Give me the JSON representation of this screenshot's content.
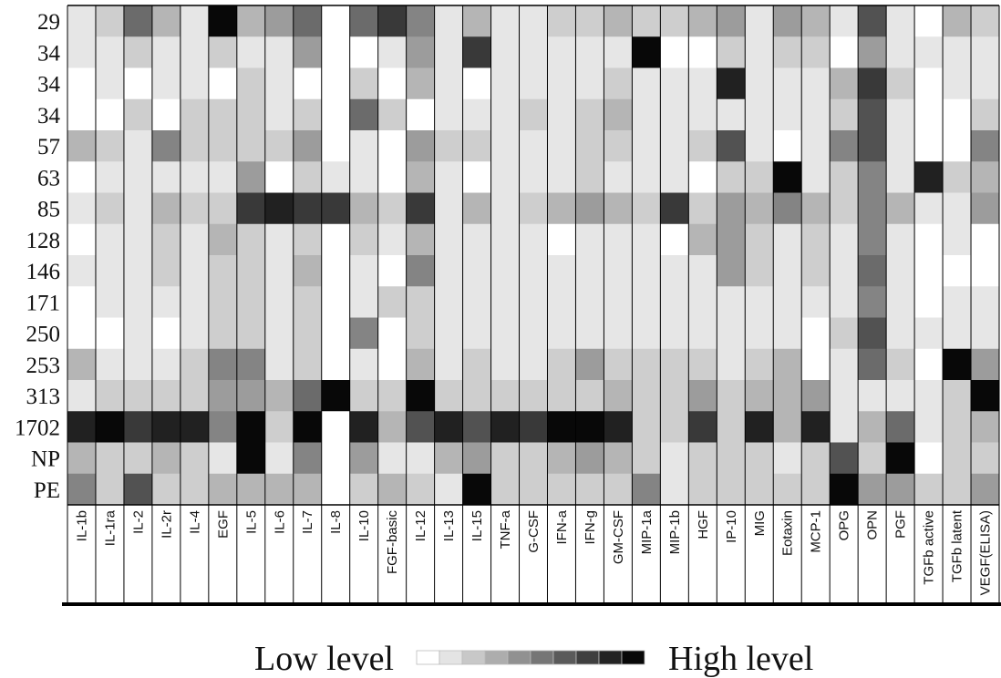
{
  "chart_data": {
    "type": "heatmap",
    "rows": [
      "29",
      "34",
      "34",
      "34",
      "57",
      "63",
      "85",
      "128",
      "146",
      "171",
      "250",
      "253",
      "313",
      "1702",
      "NP",
      "PE"
    ],
    "columns": [
      "IL-1b",
      "IL-1ra",
      "IL-2",
      "IL-2r",
      "IL-4",
      "EGF",
      "IL-5",
      "IL-6",
      "IL-7",
      "IL-8",
      "IL-10",
      "FGF-basic",
      "IL-12",
      "IL-13",
      "IL-15",
      "TNF-a",
      "G-CSF",
      "IFN-a",
      "IFN-g",
      "GM-CSF",
      "MIP-1a",
      "MIP-1b",
      "HGF",
      "IP-10",
      "MIG",
      "Eotaxin",
      "MCP-1",
      "OPG",
      "OPN",
      "PGF",
      "TGFb active",
      "TGFb latent",
      "VEGF(ELISA)"
    ],
    "scale": {
      "min": 0,
      "max": 10
    },
    "values": [
      [
        1,
        2,
        6,
        3,
        1,
        10,
        3,
        4,
        6,
        0,
        6,
        8,
        5,
        1,
        3,
        1,
        1,
        2,
        2,
        3,
        2,
        2,
        3,
        4,
        1,
        4,
        3,
        1,
        7,
        1,
        0,
        3,
        2
      ],
      [
        1,
        1,
        2,
        1,
        1,
        2,
        1,
        1,
        4,
        0,
        0,
        1,
        4,
        1,
        8,
        1,
        1,
        1,
        1,
        1,
        10,
        0,
        0,
        2,
        1,
        2,
        2,
        0,
        4,
        1,
        1,
        1,
        1
      ],
      [
        0,
        1,
        0,
        1,
        1,
        0,
        2,
        1,
        0,
        0,
        2,
        0,
        3,
        1,
        0,
        1,
        1,
        1,
        1,
        2,
        1,
        1,
        1,
        9,
        1,
        1,
        1,
        3,
        8,
        2,
        0,
        1,
        1
      ],
      [
        0,
        0,
        2,
        0,
        2,
        2,
        2,
        1,
        2,
        0,
        6,
        2,
        0,
        1,
        1,
        1,
        2,
        1,
        2,
        3,
        1,
        1,
        1,
        1,
        1,
        1,
        1,
        2,
        7,
        1,
        0,
        0,
        2
      ],
      [
        3,
        2,
        1,
        5,
        2,
        2,
        2,
        2,
        4,
        0,
        1,
        0,
        4,
        2,
        2,
        1,
        1,
        1,
        2,
        2,
        1,
        1,
        2,
        7,
        1,
        0,
        1,
        5,
        7,
        1,
        0,
        0,
        5
      ],
      [
        0,
        1,
        1,
        1,
        1,
        1,
        4,
        0,
        2,
        1,
        1,
        0,
        3,
        1,
        0,
        1,
        1,
        1,
        2,
        1,
        1,
        1,
        0,
        2,
        2,
        10,
        1,
        2,
        5,
        1,
        9,
        2,
        3
      ],
      [
        1,
        2,
        1,
        3,
        2,
        2,
        8,
        9,
        8,
        8,
        3,
        2,
        8,
        1,
        3,
        1,
        2,
        3,
        4,
        3,
        2,
        8,
        2,
        4,
        3,
        5,
        3,
        2,
        5,
        3,
        1,
        1,
        4
      ],
      [
        0,
        1,
        1,
        2,
        1,
        3,
        2,
        1,
        2,
        0,
        2,
        1,
        3,
        1,
        1,
        1,
        1,
        0,
        1,
        1,
        1,
        0,
        3,
        4,
        2,
        1,
        2,
        1,
        5,
        1,
        0,
        1,
        0
      ],
      [
        1,
        1,
        1,
        2,
        1,
        2,
        2,
        1,
        3,
        0,
        1,
        0,
        5,
        1,
        1,
        1,
        1,
        1,
        1,
        1,
        1,
        1,
        1,
        4,
        2,
        1,
        2,
        1,
        6,
        1,
        0,
        0,
        0
      ],
      [
        0,
        1,
        1,
        1,
        1,
        2,
        2,
        1,
        2,
        0,
        1,
        2,
        2,
        1,
        1,
        1,
        1,
        1,
        1,
        1,
        1,
        1,
        1,
        1,
        1,
        1,
        1,
        1,
        5,
        1,
        0,
        1,
        1
      ],
      [
        0,
        0,
        1,
        0,
        1,
        2,
        2,
        1,
        2,
        0,
        5,
        0,
        2,
        1,
        1,
        1,
        1,
        1,
        1,
        1,
        1,
        1,
        1,
        1,
        1,
        1,
        0,
        2,
        7,
        1,
        1,
        1,
        1
      ],
      [
        3,
        1,
        1,
        1,
        2,
        5,
        5,
        1,
        2,
        0,
        1,
        0,
        3,
        1,
        2,
        1,
        1,
        2,
        4,
        2,
        2,
        2,
        2,
        1,
        2,
        3,
        0,
        1,
        6,
        2,
        0,
        10,
        4
      ],
      [
        1,
        2,
        2,
        2,
        2,
        4,
        4,
        3,
        6,
        10,
        2,
        2,
        10,
        2,
        2,
        2,
        2,
        2,
        2,
        3,
        2,
        2,
        4,
        2,
        3,
        3,
        4,
        1,
        1,
        1,
        1,
        2,
        10
      ],
      [
        9,
        10,
        8,
        9,
        9,
        5,
        10,
        2,
        10,
        0,
        9,
        3,
        7,
        9,
        7,
        9,
        8,
        10,
        10,
        9,
        2,
        2,
        8,
        2,
        9,
        3,
        9,
        1,
        3,
        6,
        1,
        2,
        3
      ],
      [
        3,
        2,
        2,
        3,
        2,
        1,
        10,
        1,
        5,
        0,
        4,
        1,
        1,
        3,
        4,
        2,
        2,
        3,
        4,
        3,
        2,
        1,
        2,
        2,
        2,
        1,
        2,
        7,
        2,
        10,
        0,
        2,
        2
      ],
      [
        5,
        2,
        7,
        2,
        2,
        3,
        3,
        3,
        3,
        0,
        2,
        3,
        2,
        1,
        10,
        2,
        2,
        2,
        2,
        2,
        5,
        1,
        2,
        2,
        2,
        2,
        2,
        10,
        4,
        4,
        2,
        2,
        4
      ]
    ],
    "legend": {
      "low_label": "Low level",
      "high_label": "High level",
      "steps": 10
    }
  }
}
